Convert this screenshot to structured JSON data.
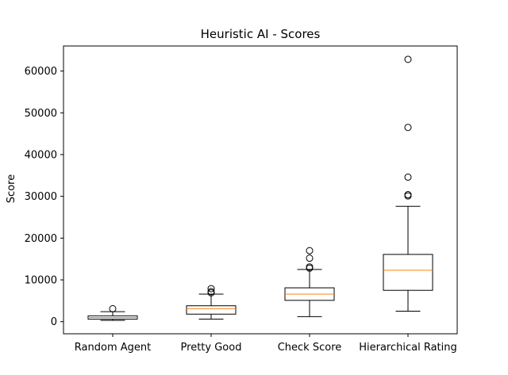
{
  "chart_data": {
    "type": "box",
    "title": "Heuristic AI - Scores",
    "xlabel": "",
    "ylabel": "Score",
    "ylim": [
      -2900,
      66000
    ],
    "yticks": [
      0,
      10000,
      20000,
      30000,
      40000,
      50000,
      60000
    ],
    "ytick_labels": [
      "0",
      "10000",
      "20000",
      "30000",
      "40000",
      "50000",
      "60000"
    ],
    "grid": false,
    "categories": [
      "Random Agent",
      "Pretty Good",
      "Check Score",
      "Hierarchical Rating"
    ],
    "boxes": [
      {
        "name": "Random Agent",
        "whisker_low": 300,
        "q1": 600,
        "median": 1000,
        "q3": 1400,
        "whisker_high": 2400,
        "outliers": [
          3100
        ]
      },
      {
        "name": "Pretty Good",
        "whisker_low": 600,
        "q1": 1800,
        "median": 3100,
        "q3": 3800,
        "whisker_high": 6600,
        "outliers": [
          6900,
          7200,
          7900
        ]
      },
      {
        "name": "Check Score",
        "whisker_low": 1200,
        "q1": 5100,
        "median": 6600,
        "q3": 8100,
        "whisker_high": 12500,
        "outliers": [
          12800,
          13100,
          15200,
          17000
        ]
      },
      {
        "name": "Hierarchical Rating",
        "whisker_low": 2500,
        "q1": 7500,
        "median": 12300,
        "q3": 16100,
        "whisker_high": 27600,
        "outliers": [
          30100,
          30400,
          34600,
          46500,
          62800
        ]
      }
    ],
    "colors": {
      "box": "#000000",
      "median": "#ff7f0e",
      "outlier": "#000000"
    }
  }
}
